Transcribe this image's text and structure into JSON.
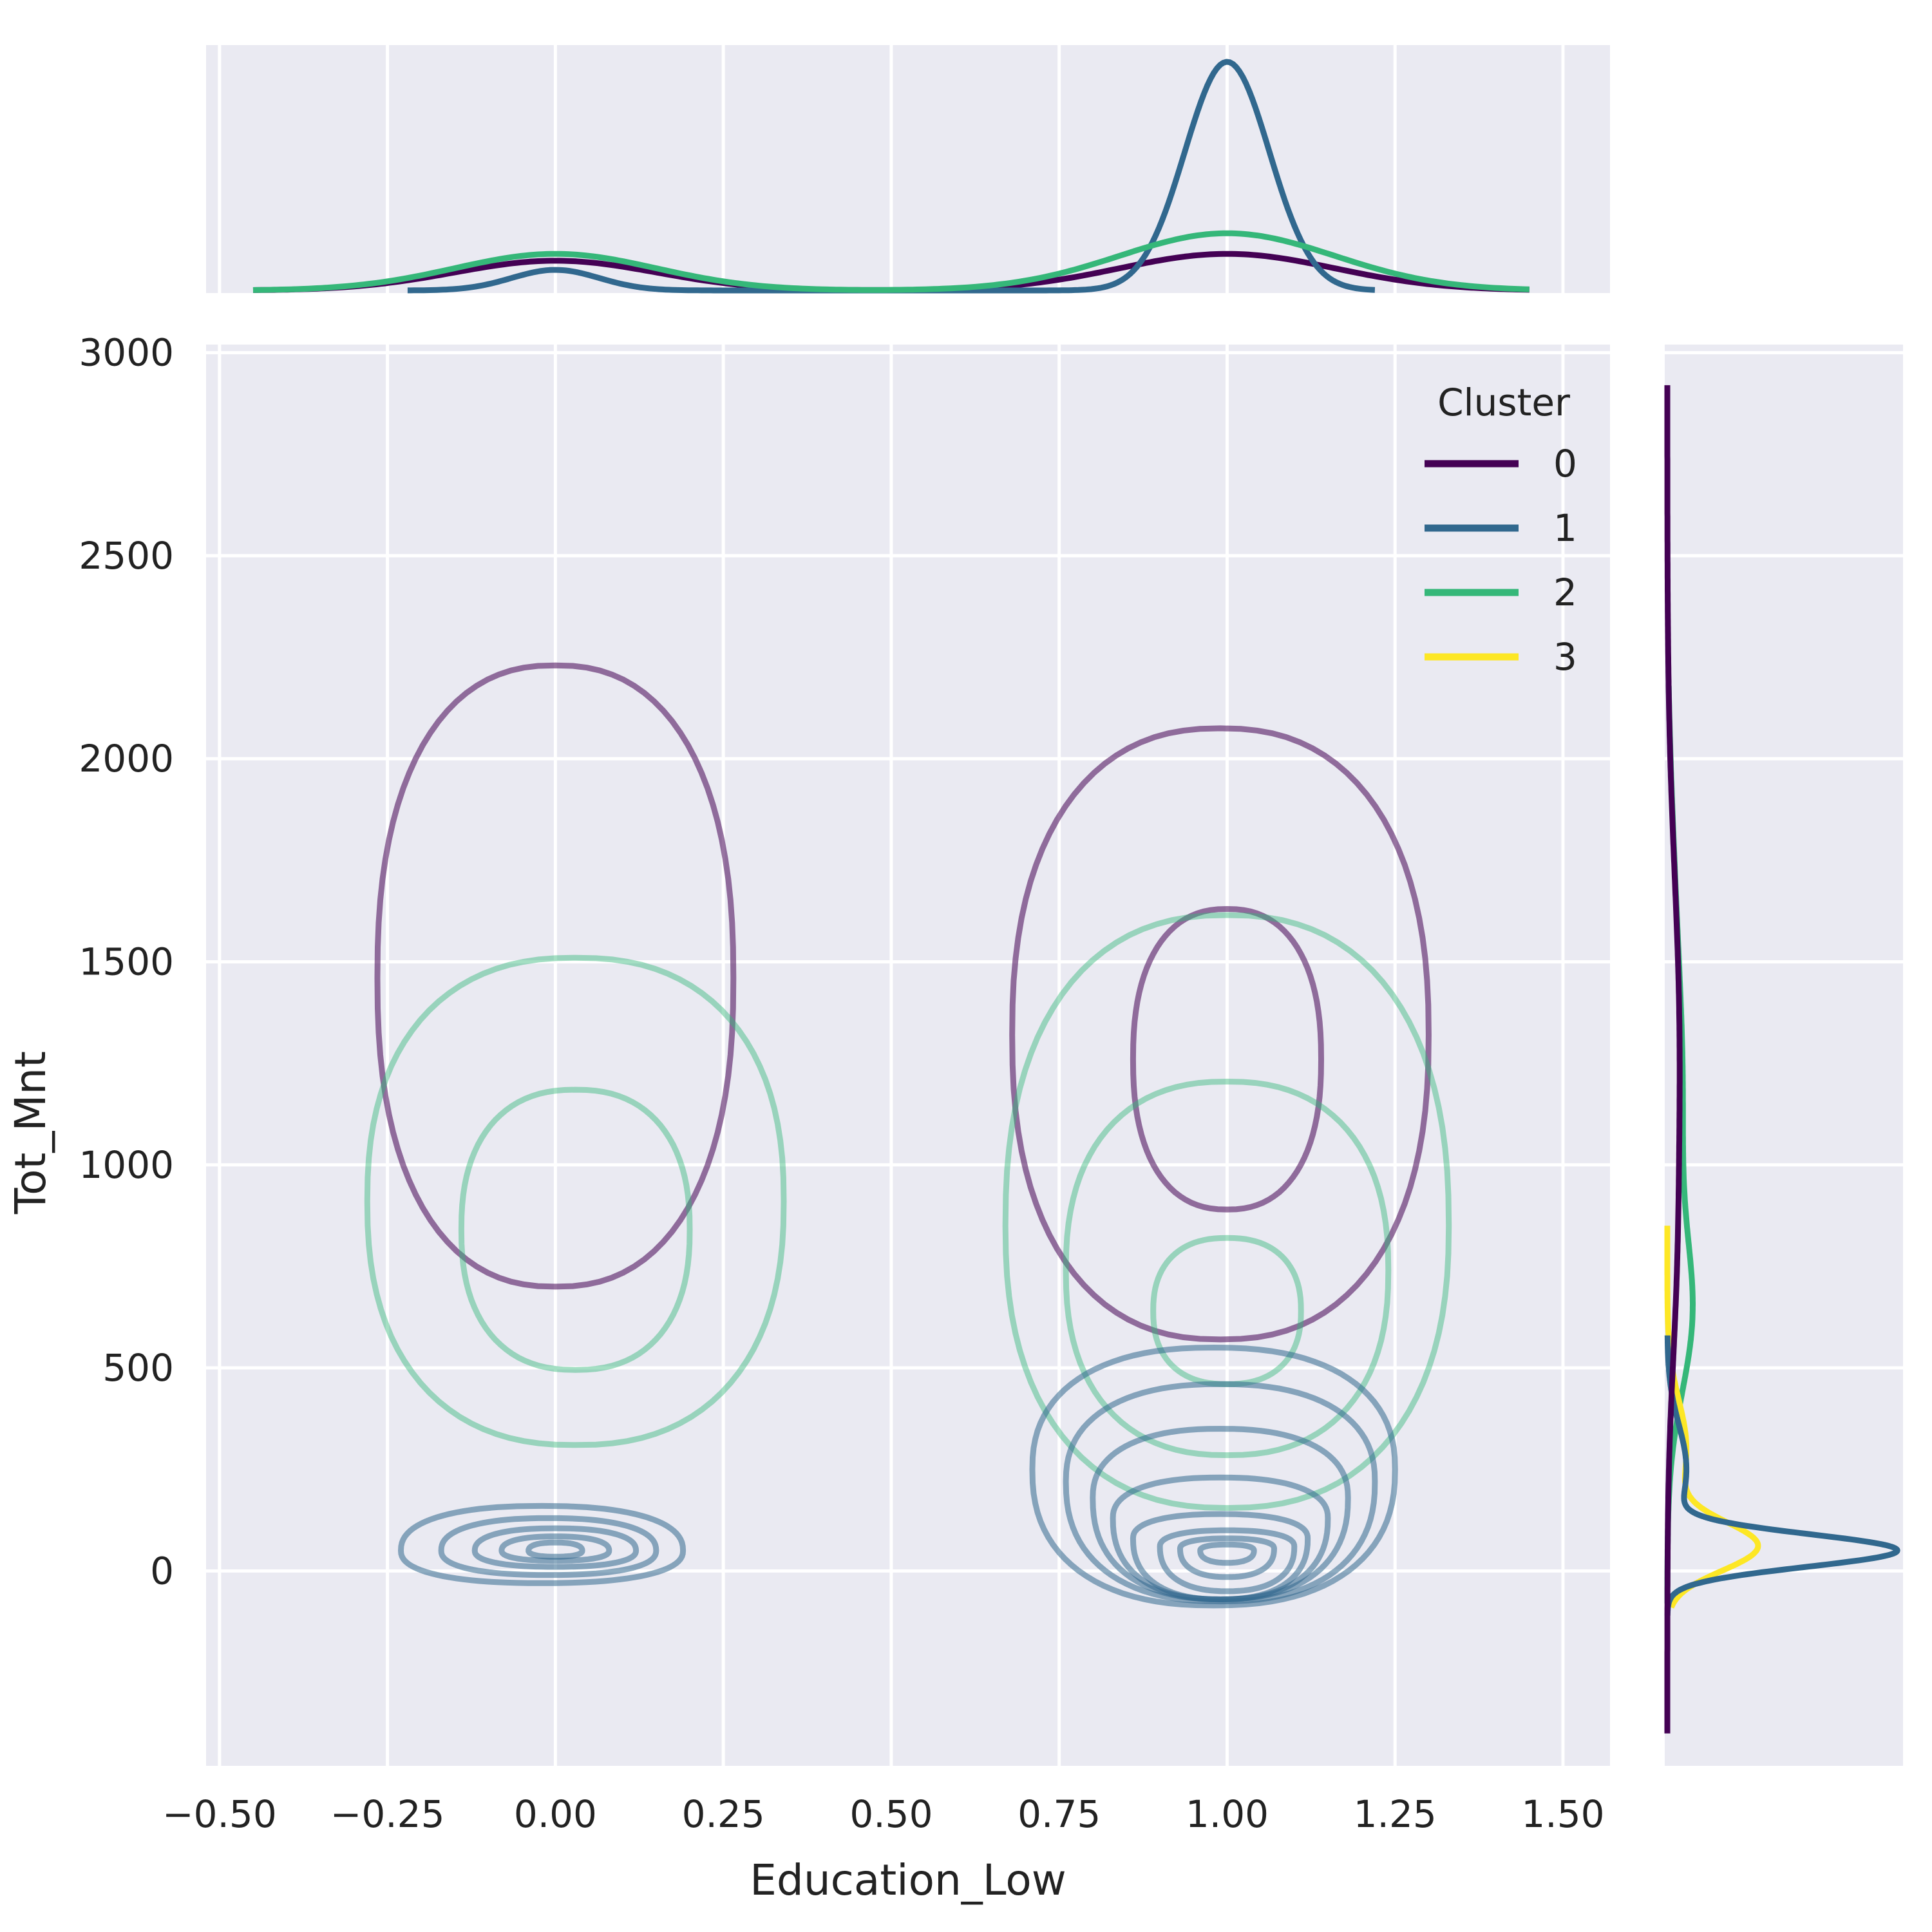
{
  "chart_data": {
    "type": "jointplot-kde",
    "xlabel": "Education_Low",
    "ylabel": "Tot_Mnt",
    "xlim": [
      -0.52,
      1.57
    ],
    "ylim": [
      -480,
      3020
    ],
    "x_ticks": [
      -0.5,
      -0.25,
      0.0,
      0.25,
      0.5,
      0.75,
      1.0,
      1.25,
      1.5
    ],
    "x_tick_labels": [
      "−0.50",
      "−0.25",
      "0.00",
      "0.25",
      "0.50",
      "0.75",
      "1.00",
      "1.25",
      "1.50"
    ],
    "y_ticks": [
      0,
      500,
      1000,
      1500,
      2000,
      2500,
      3000
    ],
    "y_tick_labels": [
      "0",
      "500",
      "1000",
      "1500",
      "2000",
      "2500",
      "3000"
    ],
    "grid": true,
    "background": "#eaeaf2",
    "legend": {
      "title": "Cluster",
      "placement": "top-right",
      "entries": [
        {
          "label": "0",
          "color": "#440154"
        },
        {
          "label": "1",
          "color": "#31688e"
        },
        {
          "label": "2",
          "color": "#35b779"
        },
        {
          "label": "3",
          "color": "#fde725"
        }
      ]
    },
    "joint_contours": [
      {
        "cluster": "0",
        "color": "#440154",
        "opacity": 0.55,
        "levels": [
          {
            "cx": 0.0,
            "cy": 1460,
            "rx": 0.265,
            "ry_top": 770,
            "ry_bottom": 760
          },
          {
            "cx": 0.99,
            "cy": 1320,
            "rx": 0.31,
            "ry_top": 755,
            "ry_bottom": 750
          },
          {
            "cx": 1.0,
            "cy": 1260,
            "rx": 0.14,
            "ry_top": 370,
            "ry_bottom": 370
          }
        ]
      },
      {
        "cluster": "2",
        "color": "#35b779",
        "opacity": 0.45,
        "levels": [
          {
            "cx": 0.03,
            "cy": 910,
            "rx": 0.31,
            "ry_top": 600,
            "ry_bottom": 600
          },
          {
            "cx": 0.03,
            "cy": 840,
            "rx": 0.17,
            "ry_top": 345,
            "ry_bottom": 345
          },
          {
            "cx": 1.0,
            "cy": 850,
            "rx": 0.33,
            "ry_top": 765,
            "ry_bottom": 695
          },
          {
            "cx": 1.0,
            "cy": 740,
            "rx": 0.24,
            "ry_top": 465,
            "ry_bottom": 455
          },
          {
            "cx": 1.0,
            "cy": 640,
            "rx": 0.11,
            "ry_top": 180,
            "ry_bottom": 180
          }
        ]
      },
      {
        "cluster": "1",
        "color": "#31688e",
        "opacity": 0.55,
        "levels": [
          {
            "cx": -0.02,
            "cy": 50,
            "rx": 0.21,
            "ry_top": 110,
            "ry_bottom": 80
          },
          {
            "cx": -0.01,
            "cy": 50,
            "rx": 0.16,
            "ry_top": 80,
            "ry_bottom": 60
          },
          {
            "cx": 0.0,
            "cy": 50,
            "rx": 0.12,
            "ry_top": 55,
            "ry_bottom": 40
          },
          {
            "cx": 0.0,
            "cy": 50,
            "rx": 0.08,
            "ry_top": 35,
            "ry_bottom": 25
          },
          {
            "cx": 0.0,
            "cy": 50,
            "rx": 0.04,
            "ry_top": 20,
            "ry_bottom": 15
          },
          {
            "cx": 0.98,
            "cy": 250,
            "rx": 0.27,
            "ry_top": 300,
            "ry_bottom": 335
          },
          {
            "cx": 0.99,
            "cy": 220,
            "rx": 0.23,
            "ry_top": 240,
            "ry_bottom": 295
          },
          {
            "cx": 0.99,
            "cy": 180,
            "rx": 0.19,
            "ry_top": 170,
            "ry_bottom": 250
          },
          {
            "cx": 0.99,
            "cy": 130,
            "rx": 0.16,
            "ry_top": 100,
            "ry_bottom": 200
          },
          {
            "cx": 0.99,
            "cy": 80,
            "rx": 0.13,
            "ry_top": 60,
            "ry_bottom": 150
          },
          {
            "cx": 1.0,
            "cy": 60,
            "rx": 0.1,
            "ry_top": 40,
            "ry_bottom": 110
          },
          {
            "cx": 1.0,
            "cy": 55,
            "rx": 0.07,
            "ry_top": 25,
            "ry_bottom": 70
          },
          {
            "cx": 1.0,
            "cy": 50,
            "rx": 0.04,
            "ry_top": 15,
            "ry_bottom": 30
          }
        ]
      }
    ],
    "marginal_x": [
      {
        "cluster": "0",
        "color": "#440154",
        "range": [
          -0.45,
          1.45
        ],
        "components": [
          {
            "mu": 0.0,
            "sigma": 0.15,
            "amp": 0.13
          },
          {
            "mu": 1.0,
            "sigma": 0.16,
            "amp": 0.16
          }
        ]
      },
      {
        "cluster": "1",
        "color": "#31688e",
        "range": [
          -0.22,
          1.22
        ],
        "components": [
          {
            "mu": 0.0,
            "sigma": 0.065,
            "amp": 0.09
          },
          {
            "mu": 1.0,
            "sigma": 0.063,
            "amp": 1.0
          }
        ]
      },
      {
        "cluster": "2",
        "color": "#35b779",
        "range": [
          -0.45,
          1.45
        ],
        "components": [
          {
            "mu": 0.0,
            "sigma": 0.15,
            "amp": 0.16
          },
          {
            "mu": 1.0,
            "sigma": 0.16,
            "amp": 0.25
          }
        ]
      }
    ],
    "marginal_y": [
      {
        "cluster": "2",
        "color": "#35b779",
        "range": [
          -80,
          2180
        ],
        "components": [
          {
            "mu": 620,
            "sigma": 190,
            "amp": 0.09
          },
          {
            "mu": 1150,
            "sigma": 320,
            "amp": 0.06
          },
          {
            "mu": 1700,
            "sigma": 300,
            "amp": 0.02
          }
        ]
      },
      {
        "cluster": "3",
        "color": "#fde725",
        "range": [
          -90,
          850
        ],
        "components": [
          {
            "mu": 60,
            "sigma": 60,
            "amp": 0.37
          },
          {
            "mu": 300,
            "sigma": 120,
            "amp": 0.08
          }
        ]
      },
      {
        "cluster": "1",
        "color": "#31688e",
        "range": [
          -110,
          580
        ],
        "components": [
          {
            "mu": 50,
            "sigma": 40,
            "amp": 0.95
          },
          {
            "mu": 250,
            "sigma": 110,
            "amp": 0.08
          }
        ]
      },
      {
        "cluster": "0",
        "color": "#440154",
        "range": [
          -400,
          2920
        ],
        "components": [
          {
            "mu": 1300,
            "sigma": 420,
            "amp": 0.05
          },
          {
            "mu": 700,
            "sigma": 260,
            "amp": 0.02
          }
        ]
      }
    ]
  }
}
